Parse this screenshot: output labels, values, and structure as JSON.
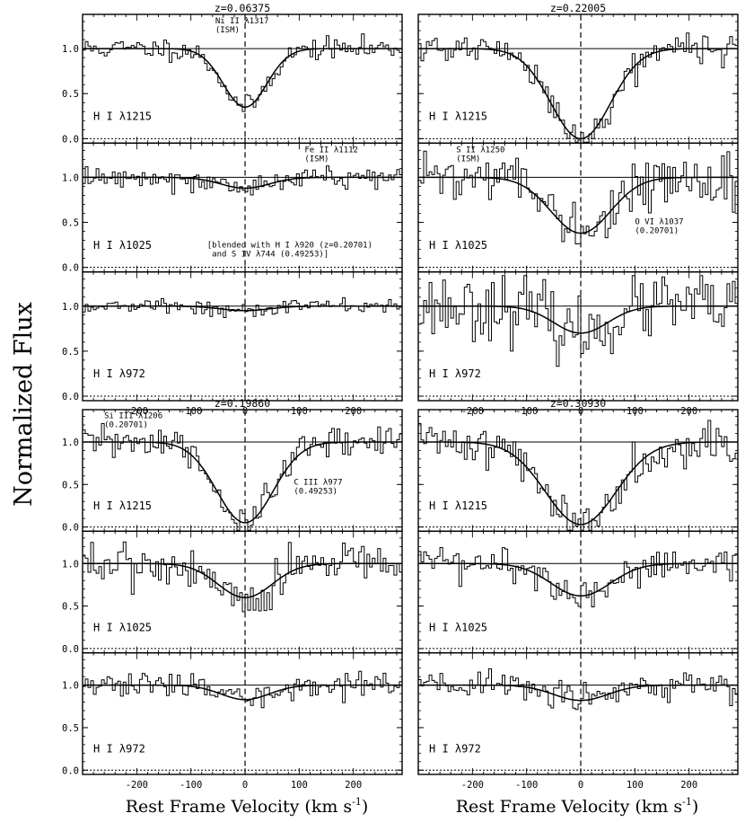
{
  "figure": {
    "ylabel": "Normalized Flux",
    "xlabel_main": "Rest Frame Velocity (km s",
    "xlabel_sup": "-1",
    "xlabel_close": ")"
  },
  "chart_data": {
    "type": "line",
    "xlim": [
      -300,
      290
    ],
    "ylim": [
      -0.05,
      1.38
    ],
    "x_ticks": [
      -200,
      -100,
      0,
      100,
      200
    ],
    "y_ticks": [
      0.0,
      0.5,
      1.0
    ],
    "grid": false,
    "panels": [
      {
        "z_label": "z=0.06375",
        "rows": [
          {
            "label": "H I λ1215",
            "fit": {
              "depth": 0.65,
              "center": 0,
              "width": 40
            },
            "noise": 0.06,
            "seed": 11,
            "annotations": [
              {
                "text": [
                  "Ni II λ1317",
                  "(ISM)"
                ],
                "x": -55,
                "y": 1.28
              }
            ]
          },
          {
            "label": "H I λ1025",
            "fit": {
              "depth": 0.12,
              "center": 0,
              "width": 45
            },
            "noise": 0.06,
            "seed": 12,
            "annotations": [
              {
                "text": [
                  "Fe II λ1112",
                  "(ISM)"
                ],
                "x": 110,
                "y": 1.28
              },
              {
                "text": [
                  "[blended with H I λ920 (z=0.20701)",
                  " and S IV λ744 (0.49253)]"
                ],
                "x": -70,
                "y": 0.22
              }
            ]
          },
          {
            "label": "H I λ972",
            "fit": {
              "depth": 0.05,
              "center": 0,
              "width": 45
            },
            "noise": 0.04,
            "seed": 13,
            "annotations": []
          }
        ]
      },
      {
        "z_label": "z=0.22005",
        "rows": [
          {
            "label": "H I λ1215",
            "fit": {
              "depth": 1.0,
              "center": 0,
              "width": 55
            },
            "noise": 0.08,
            "seed": 21,
            "annotations": []
          },
          {
            "label": "H I λ1025",
            "fit": {
              "depth": 0.62,
              "center": 0,
              "width": 55
            },
            "noise": 0.13,
            "seed": 22,
            "annotations": [
              {
                "text": [
                  "S II λ1250",
                  "(ISM)"
                ],
                "x": -230,
                "y": 1.28
              },
              {
                "text": [
                  "O VI λ1037",
                  "(0.20701)"
                ],
                "x": 100,
                "y": 0.48
              }
            ]
          },
          {
            "label": "H I λ972",
            "fit": {
              "depth": 0.3,
              "center": 0,
              "width": 50
            },
            "noise": 0.18,
            "seed": 23,
            "annotations": []
          }
        ]
      },
      {
        "z_label": "z=0.19860",
        "rows": [
          {
            "label": "H I λ1215",
            "fit": {
              "depth": 0.95,
              "center": 0,
              "width": 52
            },
            "noise": 0.1,
            "seed": 31,
            "annotations": [
              {
                "text": [
                  "Si III λ1206",
                  "(0.20701)"
                ],
                "x": -260,
                "y": 1.28
              },
              {
                "text": [
                  "C III λ977",
                  "(0.49253)"
                ],
                "x": 90,
                "y": 0.5
              }
            ]
          },
          {
            "label": "H I λ1025",
            "fit": {
              "depth": 0.4,
              "center": 0,
              "width": 50
            },
            "noise": 0.13,
            "seed": 32,
            "annotations": []
          },
          {
            "label": "H I λ972",
            "fit": {
              "depth": 0.17,
              "center": 0,
              "width": 45
            },
            "noise": 0.07,
            "seed": 33,
            "annotations": []
          }
        ]
      },
      {
        "z_label": "z=0.30930",
        "rows": [
          {
            "label": "H I λ1215",
            "fit": {
              "depth": 0.97,
              "center": 0,
              "width": 65
            },
            "noise": 0.13,
            "seed": 41,
            "annotations": []
          },
          {
            "label": "H I λ1025",
            "fit": {
              "depth": 0.38,
              "center": 0,
              "width": 55
            },
            "noise": 0.1,
            "seed": 42,
            "annotations": []
          },
          {
            "label": "H I λ972",
            "fit": {
              "depth": 0.18,
              "center": 0,
              "width": 50
            },
            "noise": 0.09,
            "seed": 43,
            "annotations": []
          }
        ]
      }
    ]
  }
}
